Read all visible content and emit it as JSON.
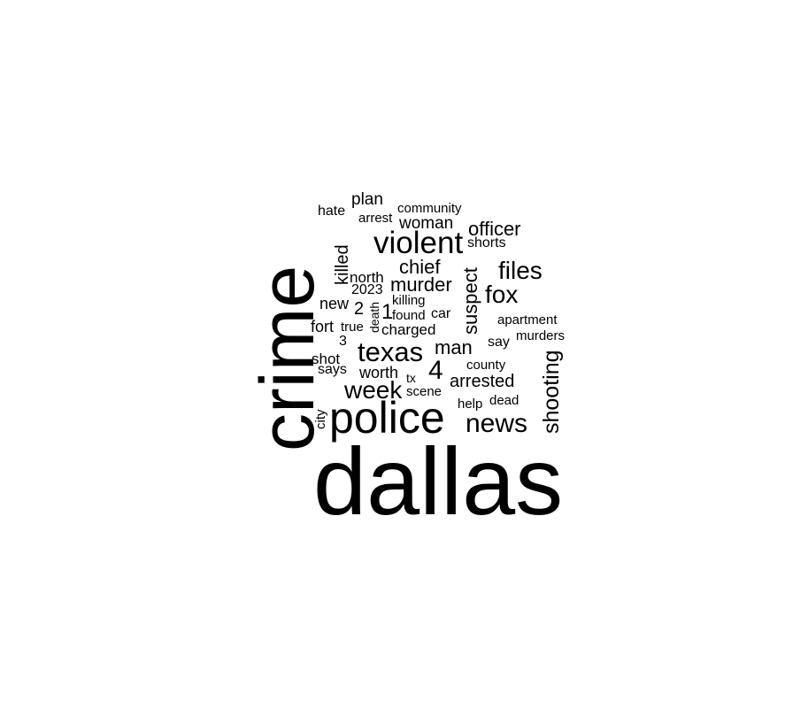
{
  "words": {
    "dallas": "dallas",
    "crime": "crime",
    "police": "police",
    "violent": "violent",
    "texas": "texas",
    "news": "news",
    "week": "week",
    "files": "files",
    "fox": "fox",
    "shooting": "shooting",
    "officer": "officer",
    "murder": "murder",
    "chief": "chief",
    "suspect": "suspect",
    "man": "man",
    "four": "4",
    "arrested": "arrested",
    "killed": "killed",
    "woman": "woman",
    "plan": "plan",
    "hate": "hate",
    "arrest": "arrest",
    "community": "community",
    "shorts": "shorts",
    "north": "north",
    "y2023": "2023",
    "killing": "killing",
    "new": "new",
    "two": "2",
    "death": "death",
    "one": "1",
    "found": "found",
    "car": "car",
    "apartment": "apartment",
    "fort": "fort",
    "true": "true",
    "charged": "charged",
    "murders": "murders",
    "three": "3",
    "say": "say",
    "shot": "shot",
    "says": "says",
    "worth": "worth",
    "county": "county",
    "tx": "tx",
    "scene": "scene",
    "city": "city",
    "help": "help",
    "dead": "dead"
  }
}
